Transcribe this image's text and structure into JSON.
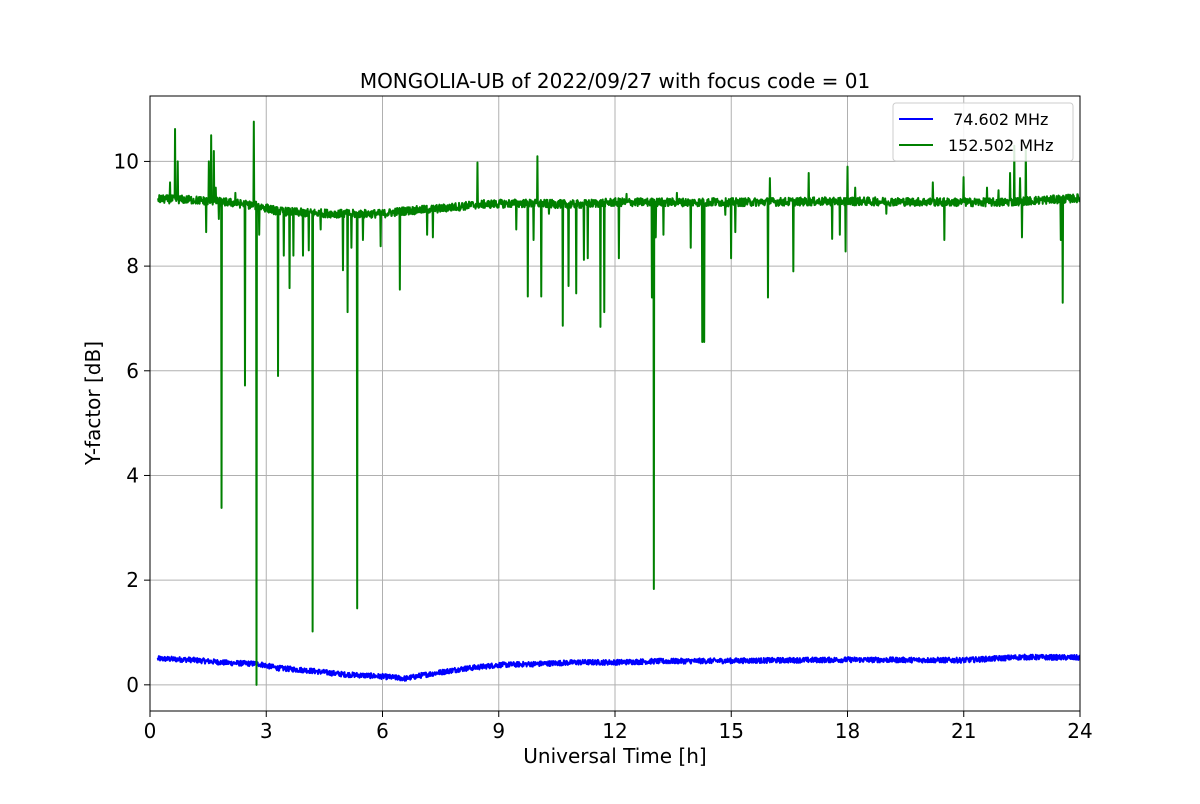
{
  "chart_data": {
    "type": "line",
    "title": "MONGOLIA-UB of 2022/09/27 with focus code = 01",
    "xlabel": "Universal Time [h]",
    "ylabel": "Y-factor [dB]",
    "xlim": [
      0,
      24
    ],
    "ylim": [
      -0.5,
      11.25
    ],
    "xticks": [
      0,
      3,
      6,
      9,
      12,
      15,
      18,
      21,
      24
    ],
    "xtick_labels": [
      "0",
      "3",
      "6",
      "9",
      "12",
      "15",
      "18",
      "21",
      "24"
    ],
    "yticks": [
      0,
      2,
      4,
      6,
      8,
      10
    ],
    "ytick_labels": [
      "0",
      "2",
      "4",
      "6",
      "8",
      "10"
    ],
    "grid": true,
    "legend_position": "top-right",
    "series": [
      {
        "name": " 74.602 MHz",
        "color": "#0000ff",
        "baseline": [
          [
            0.2,
            0.5
          ],
          [
            1.0,
            0.48
          ],
          [
            2.0,
            0.42
          ],
          [
            2.8,
            0.4
          ],
          [
            3.3,
            0.32
          ],
          [
            4.0,
            0.28
          ],
          [
            5.0,
            0.2
          ],
          [
            6.0,
            0.16
          ],
          [
            6.6,
            0.12
          ],
          [
            7.0,
            0.18
          ],
          [
            8.0,
            0.3
          ],
          [
            9.0,
            0.38
          ],
          [
            10.0,
            0.4
          ],
          [
            11.0,
            0.43
          ],
          [
            12.0,
            0.43
          ],
          [
            13.0,
            0.45
          ],
          [
            15.0,
            0.46
          ],
          [
            18.0,
            0.48
          ],
          [
            21.0,
            0.47
          ],
          [
            22.5,
            0.53
          ],
          [
            24.0,
            0.52
          ]
        ],
        "noise": 0.05,
        "spikes": []
      },
      {
        "name": "152.502 MHz",
        "color": "#008000",
        "baseline": [
          [
            0.2,
            9.28
          ],
          [
            1.0,
            9.27
          ],
          [
            2.0,
            9.22
          ],
          [
            2.8,
            9.15
          ],
          [
            3.3,
            9.05
          ],
          [
            4.0,
            9.02
          ],
          [
            5.0,
            9.0
          ],
          [
            6.0,
            9.0
          ],
          [
            6.5,
            9.05
          ],
          [
            7.5,
            9.1
          ],
          [
            8.5,
            9.18
          ],
          [
            9.5,
            9.2
          ],
          [
            11.0,
            9.18
          ],
          [
            12.0,
            9.22
          ],
          [
            13.0,
            9.22
          ],
          [
            15.0,
            9.22
          ],
          [
            18.0,
            9.24
          ],
          [
            21.0,
            9.22
          ],
          [
            22.0,
            9.22
          ],
          [
            24.0,
            9.3
          ]
        ],
        "noise": 0.08,
        "spikes": [
          [
            0.52,
            9.6
          ],
          [
            0.65,
            10.62
          ],
          [
            0.72,
            10.0
          ],
          [
            1.45,
            8.65
          ],
          [
            1.52,
            10.0
          ],
          [
            1.58,
            10.5
          ],
          [
            1.65,
            10.2
          ],
          [
            1.7,
            9.5
          ],
          [
            1.78,
            8.9
          ],
          [
            1.85,
            3.38
          ],
          [
            2.2,
            9.4
          ],
          [
            2.45,
            5.72
          ],
          [
            2.6,
            9.2
          ],
          [
            2.68,
            10.76
          ],
          [
            2.75,
            0.0
          ],
          [
            2.82,
            8.6
          ],
          [
            3.3,
            5.9
          ],
          [
            3.45,
            8.2
          ],
          [
            3.6,
            7.58
          ],
          [
            3.7,
            8.2
          ],
          [
            3.95,
            8.2
          ],
          [
            4.1,
            8.3
          ],
          [
            4.2,
            1.02
          ],
          [
            4.4,
            8.7
          ],
          [
            4.98,
            7.92
          ],
          [
            5.1,
            7.12
          ],
          [
            5.2,
            8.35
          ],
          [
            5.35,
            1.46
          ],
          [
            5.5,
            8.5
          ],
          [
            5.95,
            8.38
          ],
          [
            6.45,
            7.55
          ],
          [
            7.15,
            8.6
          ],
          [
            7.3,
            8.55
          ],
          [
            8.45,
            9.98
          ],
          [
            9.45,
            8.7
          ],
          [
            9.75,
            7.42
          ],
          [
            9.9,
            8.5
          ],
          [
            10.0,
            10.1
          ],
          [
            10.1,
            7.42
          ],
          [
            10.3,
            9.0
          ],
          [
            10.65,
            6.86
          ],
          [
            10.8,
            7.62
          ],
          [
            11.0,
            7.48
          ],
          [
            11.2,
            8.12
          ],
          [
            11.3,
            8.15
          ],
          [
            11.62,
            6.84
          ],
          [
            11.72,
            7.12
          ],
          [
            12.1,
            8.15
          ],
          [
            12.3,
            9.38
          ],
          [
            12.95,
            7.4
          ],
          [
            13.0,
            1.83
          ],
          [
            13.05,
            8.55
          ],
          [
            13.25,
            8.6
          ],
          [
            13.6,
            9.4
          ],
          [
            13.95,
            8.35
          ],
          [
            14.25,
            6.55
          ],
          [
            14.3,
            6.55
          ],
          [
            14.55,
            9.3
          ],
          [
            14.85,
            8.98
          ],
          [
            15.0,
            8.15
          ],
          [
            15.1,
            8.65
          ],
          [
            15.95,
            7.4
          ],
          [
            16.0,
            9.68
          ],
          [
            16.6,
            7.9
          ],
          [
            17.0,
            9.78
          ],
          [
            17.6,
            8.52
          ],
          [
            17.8,
            8.6
          ],
          [
            17.95,
            8.28
          ],
          [
            18.0,
            9.9
          ],
          [
            18.2,
            9.5
          ],
          [
            19.0,
            9.0
          ],
          [
            20.2,
            9.6
          ],
          [
            20.5,
            8.5
          ],
          [
            21.0,
            9.7
          ],
          [
            21.6,
            9.5
          ],
          [
            21.9,
            9.45
          ],
          [
            22.2,
            9.78
          ],
          [
            22.3,
            10.3
          ],
          [
            22.45,
            9.68
          ],
          [
            22.5,
            8.55
          ],
          [
            22.6,
            10.3
          ],
          [
            23.5,
            8.5
          ],
          [
            23.55,
            7.3
          ]
        ]
      }
    ]
  }
}
